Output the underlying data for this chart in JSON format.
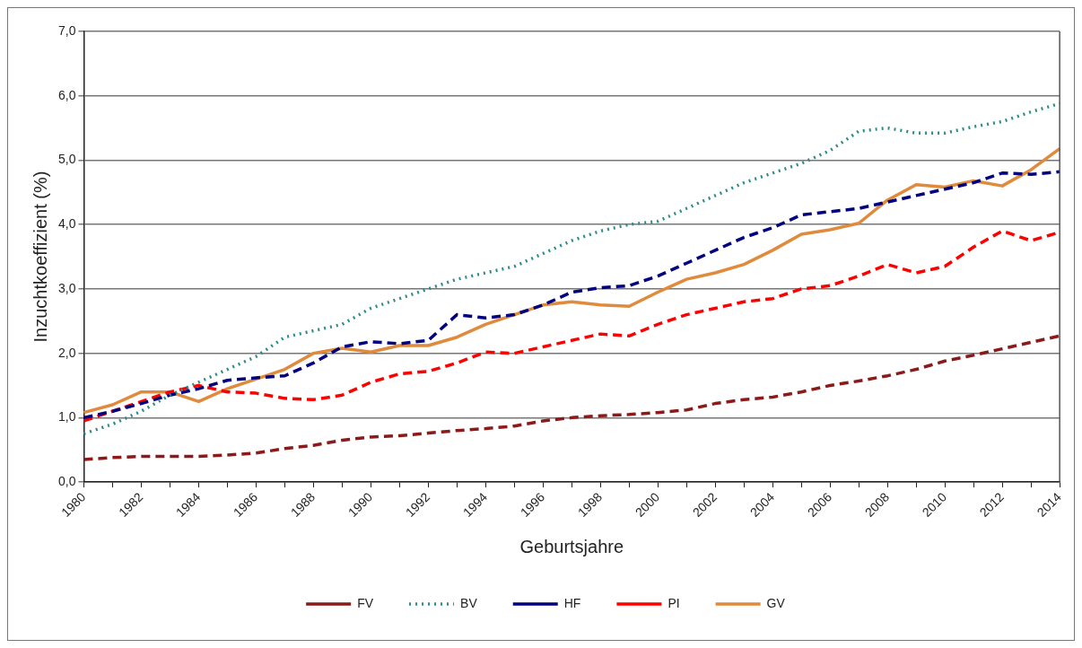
{
  "chart_data": {
    "type": "line",
    "xlabel": "Geburtsjahre",
    "ylabel": "Inzuchtkoeffizient (%)",
    "categories": [
      "1980",
      null,
      "1982",
      null,
      "1984",
      null,
      "1986",
      null,
      "1988",
      null,
      "1990",
      null,
      "1992",
      null,
      "1994",
      null,
      "1996",
      null,
      "1998",
      null,
      "2000",
      null,
      "2002",
      null,
      "2004",
      null,
      "2006",
      null,
      "2008",
      null,
      "2010",
      null,
      "2012",
      null,
      "2014"
    ],
    "ylim": [
      0,
      7
    ],
    "yticks": [
      {
        "value": 0,
        "label": "0,0"
      },
      {
        "value": 1,
        "label": "1,0"
      },
      {
        "value": 2,
        "label": "2,0"
      },
      {
        "value": 3,
        "label": "3,0"
      },
      {
        "value": 4,
        "label": "4,0"
      },
      {
        "value": 5,
        "label": "5,0"
      },
      {
        "value": 6,
        "label": "6,0"
      },
      {
        "value": 7,
        "label": "7,0"
      }
    ],
    "grid": "y",
    "legend": "bottom",
    "marker": "none",
    "series": [
      {
        "name": "FV",
        "color": "#8b1a1a",
        "line_style": "dashed",
        "values": [
          0.35,
          0.38,
          0.4,
          0.4,
          0.4,
          0.42,
          0.45,
          0.52,
          0.57,
          0.65,
          0.7,
          0.72,
          0.76,
          0.8,
          0.83,
          0.87,
          0.95,
          1.0,
          1.03,
          1.05,
          1.08,
          1.12,
          1.22,
          1.28,
          1.32,
          1.4,
          1.5,
          1.57,
          1.65,
          1.75,
          1.88,
          1.97,
          2.07,
          2.17,
          2.27
        ]
      },
      {
        "name": "BV",
        "color": "#2e8b8b",
        "line_style": "dotted",
        "values": [
          0.75,
          0.9,
          1.1,
          1.35,
          1.55,
          1.75,
          1.95,
          2.25,
          2.35,
          2.45,
          2.7,
          2.85,
          3.0,
          3.15,
          3.25,
          3.35,
          3.55,
          3.75,
          3.9,
          4.0,
          4.05,
          4.25,
          4.45,
          4.65,
          4.8,
          4.95,
          5.15,
          5.45,
          5.5,
          5.42,
          5.42,
          5.52,
          5.6,
          5.75,
          5.88
        ]
      },
      {
        "name": "HF",
        "color": "#000080",
        "line_style": "dashed",
        "values": [
          1.0,
          1.1,
          1.22,
          1.35,
          1.45,
          1.58,
          1.62,
          1.65,
          1.85,
          2.1,
          2.18,
          2.15,
          2.2,
          2.6,
          2.55,
          2.6,
          2.75,
          2.95,
          3.02,
          3.05,
          3.2,
          3.4,
          3.6,
          3.8,
          3.95,
          4.15,
          4.2,
          4.25,
          4.35,
          4.45,
          4.55,
          4.65,
          4.8,
          4.78,
          4.82
        ]
      },
      {
        "name": "PI",
        "color": "#ff0000",
        "line_style": "dashed",
        "values": [
          0.95,
          1.1,
          1.25,
          1.4,
          1.5,
          1.4,
          1.38,
          1.3,
          1.28,
          1.35,
          1.55,
          1.68,
          1.72,
          1.85,
          2.02,
          2.0,
          2.1,
          2.2,
          2.3,
          2.27,
          2.45,
          2.6,
          2.7,
          2.8,
          2.85,
          3.0,
          3.05,
          3.2,
          3.38,
          3.25,
          3.35,
          3.65,
          3.9,
          3.75,
          3.88
        ]
      },
      {
        "name": "GV",
        "color": "#e08a3c",
        "line_style": "solid",
        "values": [
          1.08,
          1.2,
          1.4,
          1.4,
          1.25,
          1.45,
          1.6,
          1.75,
          2.0,
          2.08,
          2.02,
          2.12,
          2.12,
          2.25,
          2.45,
          2.6,
          2.75,
          2.8,
          2.75,
          2.73,
          2.95,
          3.15,
          3.25,
          3.38,
          3.6,
          3.85,
          3.92,
          4.02,
          4.38,
          4.62,
          4.58,
          4.68,
          4.6,
          4.85,
          5.18
        ]
      }
    ]
  }
}
